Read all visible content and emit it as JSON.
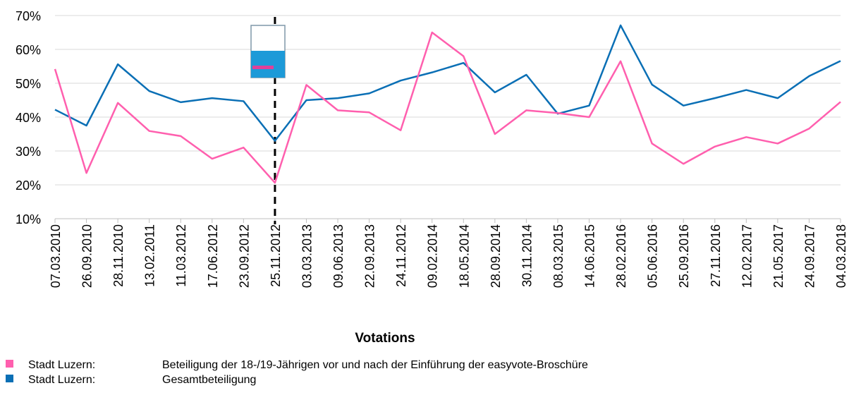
{
  "chart_data": {
    "type": "line",
    "x_label": "Votations",
    "categories": [
      "07.03.2010",
      "26.09.2010",
      "28.11.2010",
      "13.02.2011",
      "11.03.2012",
      "17.06.2012",
      "23.09.2012",
      "25.11.2012",
      "03.03.2013",
      "09.06.2013",
      "22.09.2013",
      "24.11.2012",
      "09.02.2014",
      "18.05.2014",
      "28.09.2014",
      "30.11.2014",
      "08.03.2015",
      "14.06.2015",
      "28.02.2016",
      "05.06.2016",
      "25.09.2016",
      "27.11.2016",
      "12.02.2017",
      "21.05.2017",
      "24.09.2017",
      "04.03.2018"
    ],
    "series": [
      {
        "group": "Stadt Luzern:",
        "name": "Beteiligung der 18-/19-Jährigen vor und nach der Einführung der easyvote-Broschüre",
        "color": "#ff5fae",
        "values": [
          54.2,
          23.5,
          44.2,
          35.9,
          34.4,
          27.7,
          31,
          20.6,
          49.5,
          42,
          41.4,
          36.1,
          65,
          58,
          35,
          42,
          41.2,
          40,
          56.5,
          32.2,
          26.2,
          31.3,
          34.1,
          32.2,
          36.6,
          44.5
        ]
      },
      {
        "group": "Stadt Luzern:",
        "name": "Gesamtbeteiligung",
        "color": "#0a6fb5",
        "values": [
          42.2,
          37.5,
          55.6,
          47.7,
          44.4,
          45.6,
          44.7,
          33,
          45,
          45.6,
          47,
          50.8,
          53.2,
          56,
          47.3,
          52.5,
          41,
          43.4,
          67.1,
          49.6,
          43.4,
          45.6,
          48,
          45.6,
          52.1,
          56.6
        ]
      }
    ],
    "ylim": [
      10,
      70
    ],
    "yticks": [
      {
        "value": 10,
        "label": "10%"
      },
      {
        "value": 20,
        "label": "20%"
      },
      {
        "value": 30,
        "label": "30%"
      },
      {
        "value": 40,
        "label": "40%"
      },
      {
        "value": 50,
        "label": "50%"
      },
      {
        "value": 60,
        "label": "60%"
      },
      {
        "value": 70,
        "label": "70%"
      }
    ],
    "grid": true
  }
}
